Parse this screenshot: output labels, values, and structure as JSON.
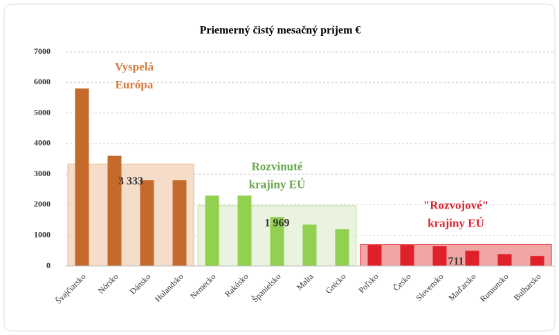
{
  "chart_data": {
    "type": "bar",
    "title": "Priemerný čistý mesačný príjem €",
    "ylim": [
      0,
      7000
    ],
    "yticks": [
      0,
      1000,
      2000,
      3000,
      4000,
      5000,
      6000,
      7000
    ],
    "grid": true,
    "groups": [
      {
        "label": [
          "Vyspelá",
          "Európa"
        ],
        "color": "#c46a2a",
        "label_color": "#d4793a",
        "band_fill": "#f5ddc9",
        "band_stroke": "#e8b990",
        "categories": [
          "Švajčiarsko",
          "Nórsko",
          "Dánsko",
          "Holandsko"
        ],
        "values": [
          5800,
          3600,
          2800,
          2800
        ],
        "average": 3333,
        "average_label": "3 333"
      },
      {
        "label": [
          "Rozvinuté",
          "krajiny EÚ"
        ],
        "color": "#92d050",
        "label_color": "#6aa84f",
        "band_fill": "#e9f3df",
        "band_stroke": "#c5e0a8",
        "categories": [
          "Nemecko",
          "Rakúsko",
          "Španielsko",
          "Malta",
          "Grécko"
        ],
        "values": [
          2300,
          2300,
          1600,
          1350,
          1200
        ],
        "average": 1969,
        "average_label": "1 969"
      },
      {
        "label": [
          "\"Rozvojové\"",
          "krajiny EÚ"
        ],
        "color": "#e0202a",
        "label_color": "#d9262e",
        "band_fill": "#f2a5a5",
        "band_stroke": "#e0202a",
        "categories": [
          "Poľsko",
          "Česko",
          "Slovensko",
          "Maďarsko",
          "Rumunsko",
          "Bulharsko"
        ],
        "values": [
          680,
          680,
          650,
          500,
          380,
          320
        ],
        "average": 711,
        "average_label": "711"
      }
    ]
  }
}
